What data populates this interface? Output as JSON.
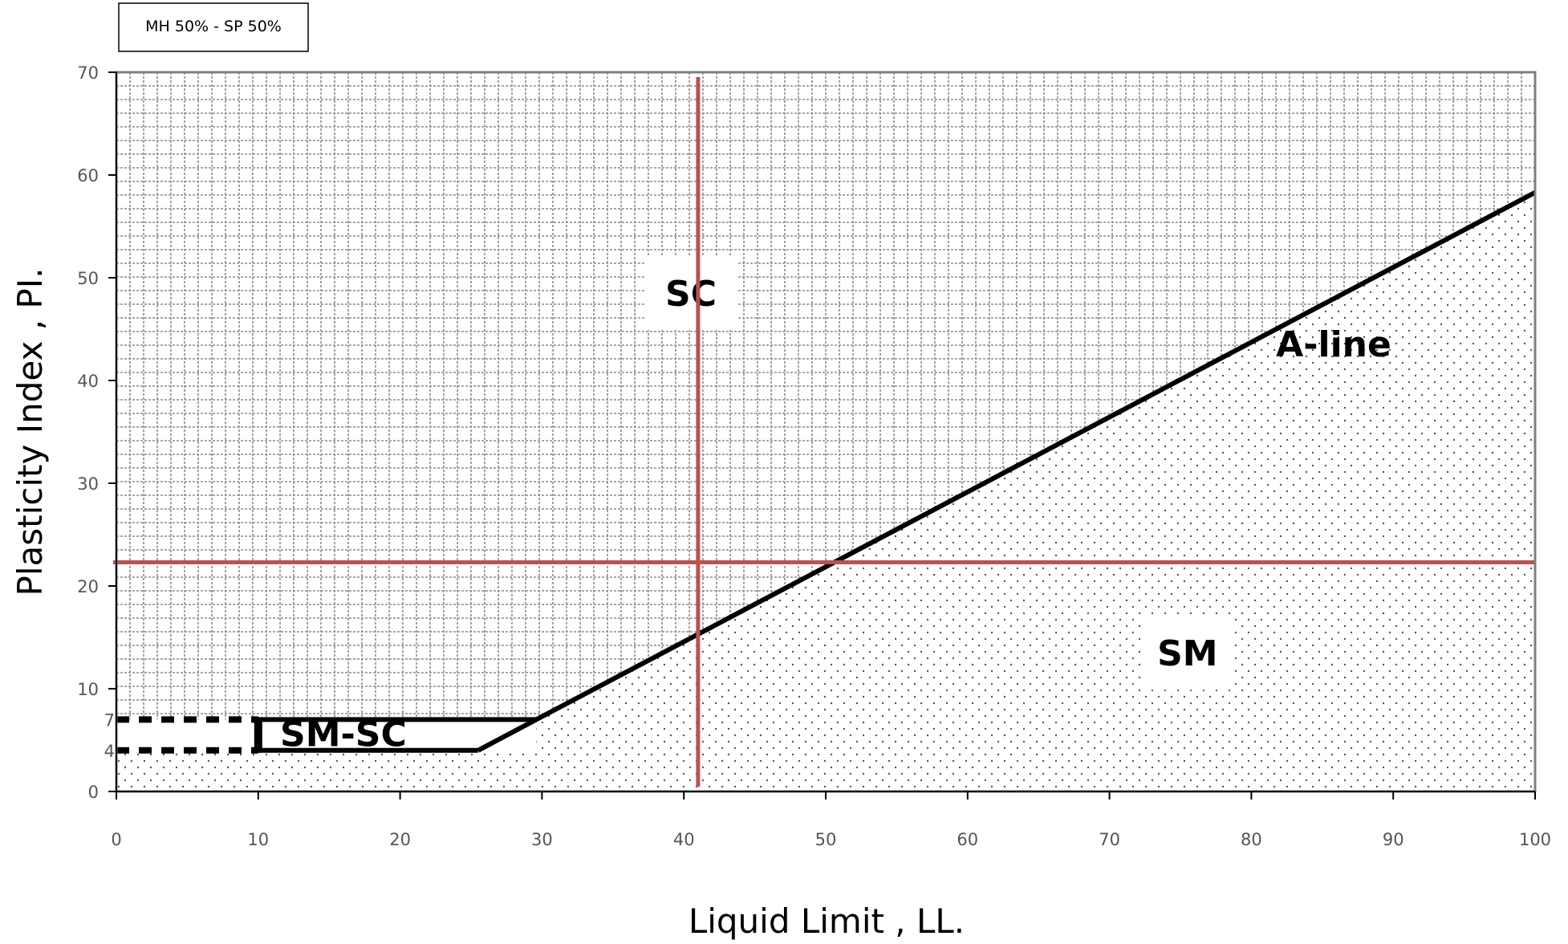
{
  "chart_data": {
    "type": "line",
    "title": "MH 50% - SP 50%",
    "xlabel": "Liquid Limit , LL.",
    "ylabel": "Plasticity Index , PI.",
    "xlim": [
      0,
      100
    ],
    "ylim": [
      0,
      70
    ],
    "x_ticks": [
      "0",
      "10",
      "20",
      "30",
      "40",
      "50",
      "60",
      "70",
      "80",
      "90",
      "100"
    ],
    "y_ticks": [
      "0",
      "10",
      "20",
      "30",
      "40",
      "50",
      "60",
      "70"
    ],
    "y_extra_ticks": [
      "4",
      "7"
    ],
    "series": [
      {
        "name": "A-line",
        "x": [
          25.5,
          29.6,
          100
        ],
        "y": [
          4,
          7,
          58.3
        ]
      }
    ],
    "crosshair": {
      "x": 41,
      "y": 22.3
    },
    "regions": [
      {
        "label": "SC",
        "x": 40.5,
        "y": 48.5
      },
      {
        "label": "SM",
        "x": 75.5,
        "y": 13.5
      },
      {
        "label": "SM-SC",
        "x": 16,
        "y": 5.5
      }
    ],
    "sm_sc_band": {
      "x_start": 10,
      "x_end_low": 25.5,
      "x_end_high": 29.6,
      "y_low": 4,
      "y_high": 7,
      "dashed_x_start": 0
    },
    "grid": true,
    "colors": {
      "a_line": "#000000",
      "crosshair": "#c0504d",
      "grid": "#8c8c8c",
      "frame": "#7f7f7f"
    }
  }
}
